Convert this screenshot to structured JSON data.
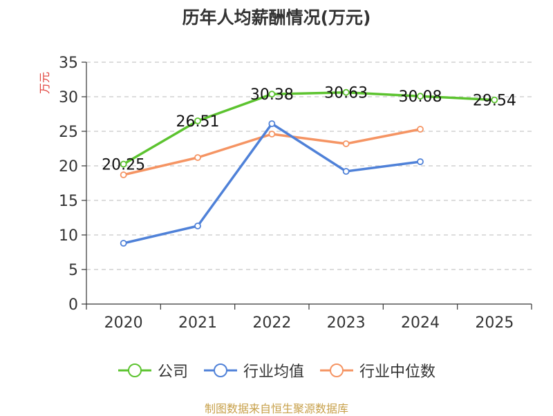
{
  "chart_data": {
    "type": "line",
    "title": "历年人均薪酬情况(万元)",
    "ylabel": "万元",
    "xlabel": "",
    "ylim": [
      0,
      35
    ],
    "yticks": [
      0,
      5,
      10,
      15,
      20,
      25,
      30,
      35
    ],
    "categories": [
      "2020",
      "2021",
      "2022",
      "2023",
      "2024",
      "2025"
    ],
    "series": [
      {
        "name": "公司",
        "color": "#5cc32f",
        "values": [
          20.25,
          26.51,
          30.38,
          30.63,
          30.08,
          29.54
        ],
        "labels": [
          "20.25",
          "26.51",
          "30.38",
          "30.63",
          "30.08",
          "29.54"
        ]
      },
      {
        "name": "行业均值",
        "color": "#4f81d8",
        "values": [
          8.8,
          11.3,
          26.1,
          19.2,
          20.6,
          null
        ]
      },
      {
        "name": "行业中位数",
        "color": "#f59463",
        "values": [
          18.7,
          21.2,
          24.6,
          23.2,
          25.3,
          null
        ]
      }
    ],
    "grid": "dashed-horizontal",
    "legend_position": "bottom"
  },
  "source": "制图数据来自恒生聚源数据库"
}
